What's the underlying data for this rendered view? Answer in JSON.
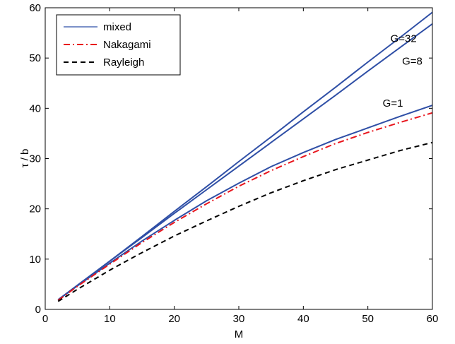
{
  "chart_data": {
    "type": "line",
    "xlabel": "M",
    "ylabel": "τ / b",
    "xlim": [
      0,
      60
    ],
    "ylim": [
      0,
      60
    ],
    "xticks": [
      0,
      10,
      20,
      30,
      40,
      50,
      60
    ],
    "yticks": [
      0,
      10,
      20,
      30,
      40,
      50,
      60
    ],
    "legend_position": "top-left",
    "x": [
      2,
      5,
      10,
      15,
      20,
      25,
      30,
      35,
      40,
      45,
      50,
      55,
      60
    ],
    "series": [
      {
        "name": "mixed",
        "color": "#2f4fa6",
        "style": "solid",
        "values": [
          1.9,
          4.8,
          9.6,
          14.5,
          19.5,
          24.4,
          29.4,
          34.3,
          39.3,
          44.2,
          49.2,
          54.1,
          59.1
        ]
      },
      {
        "name": "",
        "color": "#2f4fa6",
        "style": "solid",
        "values": [
          1.9,
          4.8,
          9.6,
          14.3,
          19.1,
          23.8,
          28.5,
          33.2,
          37.9,
          42.6,
          47.4,
          52.1,
          56.8
        ]
      },
      {
        "name": "",
        "color": "#2f4fa6",
        "style": "solid",
        "values": [
          1.9,
          4.7,
          9.2,
          13.6,
          17.7,
          21.6,
          25.1,
          28.4,
          31.2,
          33.8,
          36.1,
          38.4,
          40.6
        ]
      },
      {
        "name": "Nakagami",
        "color": "#e8141c",
        "style": "dashdot",
        "values": [
          1.8,
          4.6,
          9.0,
          13.3,
          17.3,
          21.0,
          24.5,
          27.6,
          30.4,
          33.0,
          35.2,
          37.2,
          39.1
        ]
      },
      {
        "name": "Rayleigh",
        "color": "#000000",
        "style": "dashed",
        "values": [
          1.6,
          4.0,
          7.8,
          11.3,
          14.6,
          17.6,
          20.5,
          23.2,
          25.6,
          27.8,
          29.7,
          31.6,
          33.2
        ]
      }
    ],
    "annotations": [
      {
        "text": "G=32",
        "x": 53.5,
        "y": 53.2
      },
      {
        "text": "G=8",
        "x": 55.3,
        "y": 48.7
      },
      {
        "text": "G=1",
        "x": 52.3,
        "y": 40.3
      }
    ]
  }
}
